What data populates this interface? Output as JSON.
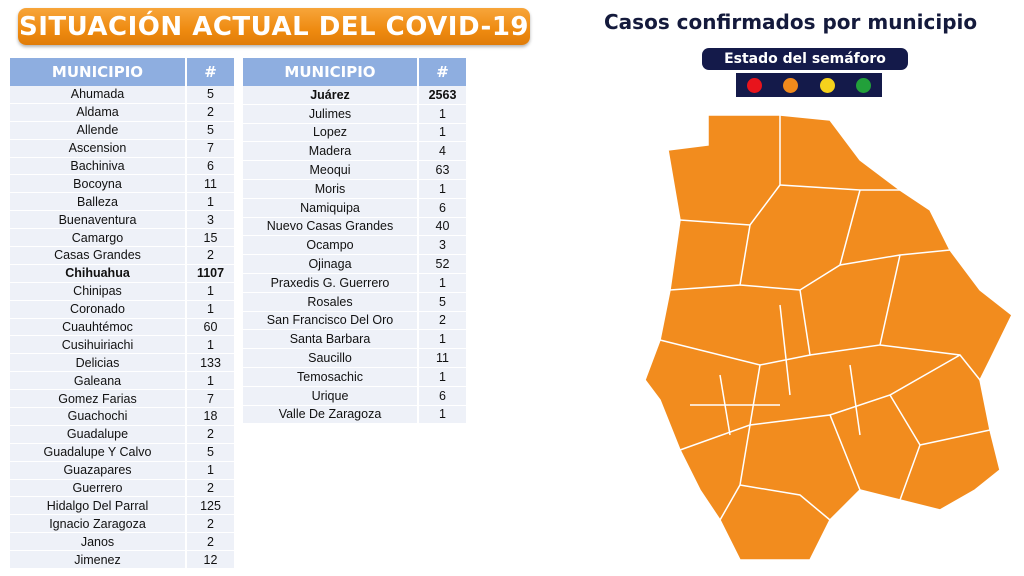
{
  "title": "SITUACIÓN ACTUAL DEL COVID-19",
  "table_headers": {
    "municipio": "MUNICIPIO",
    "count": "#"
  },
  "table_left": [
    {
      "name": "Ahumada",
      "count": "5"
    },
    {
      "name": "Aldama",
      "count": "2"
    },
    {
      "name": "Allende",
      "count": "5"
    },
    {
      "name": "Ascension",
      "count": "7"
    },
    {
      "name": "Bachiniva",
      "count": "6"
    },
    {
      "name": "Bocoyna",
      "count": "11"
    },
    {
      "name": "Balleza",
      "count": "1"
    },
    {
      "name": "Buenaventura",
      "count": "3"
    },
    {
      "name": "Camargo",
      "count": "15"
    },
    {
      "name": "Casas Grandes",
      "count": "2"
    },
    {
      "name": "Chihuahua",
      "count": "1107",
      "bold": true
    },
    {
      "name": "Chinipas",
      "count": "1"
    },
    {
      "name": "Coronado",
      "count": "1"
    },
    {
      "name": "Cuauhtémoc",
      "count": "60"
    },
    {
      "name": "Cusihuiriachi",
      "count": "1"
    },
    {
      "name": "Delicias",
      "count": "133"
    },
    {
      "name": "Galeana",
      "count": "1"
    },
    {
      "name": "Gomez Farias",
      "count": "7"
    },
    {
      "name": "Guachochi",
      "count": "18"
    },
    {
      "name": "Guadalupe",
      "count": "2"
    },
    {
      "name": "Guadalupe Y Calvo",
      "count": "5"
    },
    {
      "name": "Guazapares",
      "count": "1"
    },
    {
      "name": "Guerrero",
      "count": "2"
    },
    {
      "name": "Hidalgo Del Parral",
      "count": "125"
    },
    {
      "name": "Ignacio Zaragoza",
      "count": "2"
    },
    {
      "name": "Janos",
      "count": "2"
    },
    {
      "name": "Jimenez",
      "count": "12"
    }
  ],
  "table_right": [
    {
      "name": "Juárez",
      "count": "2563",
      "bold": true
    },
    {
      "name": "Julimes",
      "count": "1"
    },
    {
      "name": "Lopez",
      "count": "1"
    },
    {
      "name": "Madera",
      "count": "4"
    },
    {
      "name": "Meoqui",
      "count": "63"
    },
    {
      "name": "Moris",
      "count": "1"
    },
    {
      "name": "Namiquipa",
      "count": "6"
    },
    {
      "name": "Nuevo Casas Grandes",
      "count": "40"
    },
    {
      "name": "Ocampo",
      "count": "3"
    },
    {
      "name": "Ojinaga",
      "count": "52"
    },
    {
      "name": "Praxedis G. Guerrero",
      "count": "1"
    },
    {
      "name": "Rosales",
      "count": "5"
    },
    {
      "name": "San Francisco Del Oro",
      "count": "2"
    },
    {
      "name": "Santa Barbara",
      "count": "1"
    },
    {
      "name": "Saucillo",
      "count": "11"
    },
    {
      "name": "Temosachic",
      "count": "1"
    },
    {
      "name": "Urique",
      "count": "6"
    },
    {
      "name": "Valle De Zaragoza",
      "count": "1"
    }
  ],
  "map": {
    "title": "Casos confirmados por municipio",
    "semaforo_label": "Estado del semáforo",
    "semaforo_colors": [
      "#e8141c",
      "#f08a1c",
      "#f5d21c",
      "#22a03a"
    ],
    "fill_color": "#f28c1e",
    "current_state": "orange"
  }
}
